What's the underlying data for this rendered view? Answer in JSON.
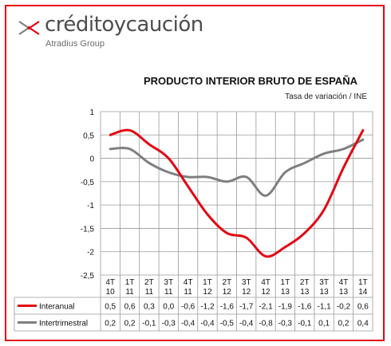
{
  "logo": {
    "brand": "créditoycaución",
    "sub": "Atradius Group",
    "icon": "arrow-chevrons-icon",
    "brand_color": "#e30613"
  },
  "title": "PRODUCTO INTERIOR BRUTO DE ESPAÑA",
  "subtitle": "Tasa de variación / INE",
  "colors": {
    "frame": "#e30613",
    "interanual": "#e30613",
    "intertrimestral": "#7f7f7f",
    "grid": "#9a9a9a"
  },
  "chart_data": {
    "type": "line",
    "categories": [
      [
        "4T",
        "10"
      ],
      [
        "1T",
        "11"
      ],
      [
        "2T",
        "11"
      ],
      [
        "3T",
        "11"
      ],
      [
        "4T",
        "11"
      ],
      [
        "1T",
        "12"
      ],
      [
        "2T",
        "12"
      ],
      [
        "3T",
        "12"
      ],
      [
        "4T",
        "12"
      ],
      [
        "1T",
        "13"
      ],
      [
        "2T",
        "13"
      ],
      [
        "3T",
        "13"
      ],
      [
        "4T",
        "13"
      ],
      [
        "1T",
        "14"
      ]
    ],
    "ylim": [
      -2.5,
      1
    ],
    "yticks": [
      1,
      0.5,
      0,
      -0.5,
      -1,
      -1.5,
      -2,
      -2.5
    ],
    "ytick_labels": [
      "1",
      "0,5",
      "0",
      "-0,5",
      "-1",
      "-1,5",
      "-2",
      "-2,5"
    ],
    "grid": true,
    "legend": "table-below",
    "series": [
      {
        "name": "Interanual",
        "values": [
          0.5,
          0.6,
          0.3,
          0.0,
          -0.6,
          -1.2,
          -1.6,
          -1.7,
          -2.1,
          -1.9,
          -1.6,
          -1.1,
          -0.2,
          0.6
        ],
        "labels": [
          "0,5",
          "0,6",
          "0,3",
          "0,0",
          "-0,6",
          "-1,2",
          "-1,6",
          "-1,7",
          "-2,1",
          "-1,9",
          "-1,6",
          "-1,1",
          "-0,2",
          "0,6"
        ]
      },
      {
        "name": "Intertrimestral",
        "values": [
          0.2,
          0.2,
          -0.1,
          -0.3,
          -0.4,
          -0.4,
          -0.5,
          -0.4,
          -0.8,
          -0.3,
          -0.1,
          0.1,
          0.2,
          0.4
        ],
        "labels": [
          "0,2",
          "0,2",
          "-0,1",
          "-0,3",
          "-0,4",
          "-0,4",
          "-0,5",
          "-0,4",
          "-0,8",
          "-0,3",
          "-0,1",
          "0,1",
          "0,2",
          "0,4"
        ]
      }
    ]
  }
}
